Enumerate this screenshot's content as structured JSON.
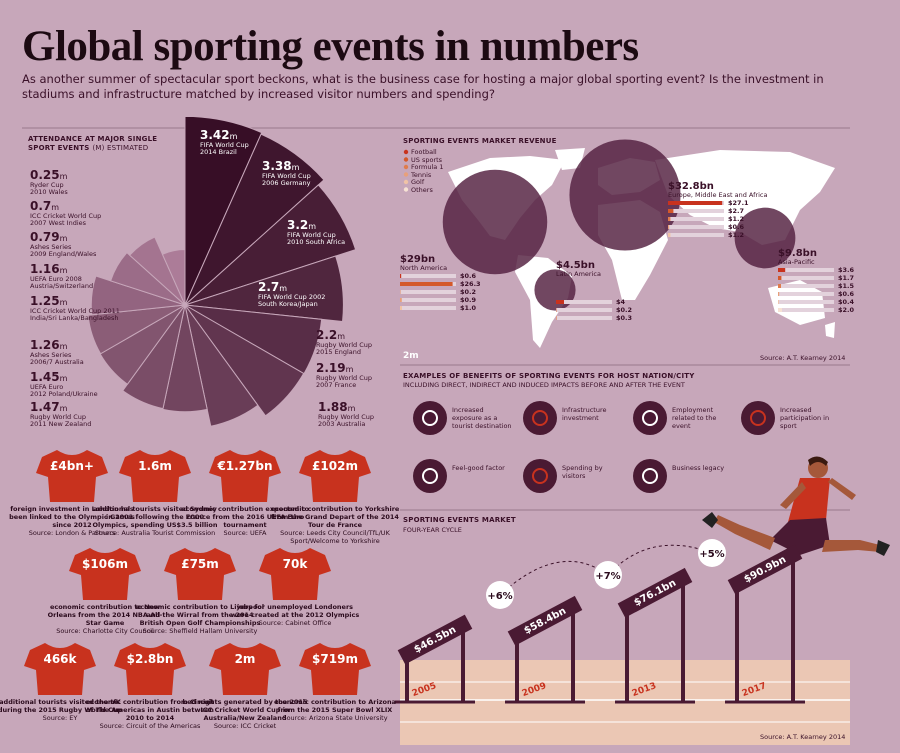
{
  "header": {
    "title": "Global sporting events in numbers",
    "subtitle": "As another summer of spectacular sport beckons, what is the business case for hosting a major global sporting event? Is the investment in stadiums and infrastructure matched by increased visitor numbers and spending?"
  },
  "attendance": {
    "title": "ATTENDANCE AT MAJOR SINGLE SPORT EVENTS",
    "note": "(M) ESTIMATED",
    "unit": "m",
    "events": [
      {
        "value": 3.42,
        "event": "FIFA World Cup",
        "host": "2014 Brazil"
      },
      {
        "value": 3.38,
        "event": "FIFA World Cup",
        "host": "2006 Germany"
      },
      {
        "value": 3.2,
        "event": "FIFA World Cup",
        "host": "2010 South Africa"
      },
      {
        "value": 2.7,
        "event": "FIFA World Cup 2002",
        "host": "South Korea/Japan"
      },
      {
        "value": 2.2,
        "event": "Rugby World Cup",
        "host": "2015 England"
      },
      {
        "value": 2.19,
        "event": "Rugby World Cup",
        "host": "2007 France"
      },
      {
        "value": 1.88,
        "event": "Rugby World Cup",
        "host": "2003 Australia"
      },
      {
        "value": 1.47,
        "event": "Rugby World Cup",
        "host": "2011 New Zealand"
      },
      {
        "value": 1.45,
        "event": "UEFA Euro",
        "host": "2012 Poland/Ukraine"
      },
      {
        "value": 1.26,
        "event": "Ashes Series",
        "host": "2006/7 Australia"
      },
      {
        "value": 1.25,
        "event": "ICC Cricket World Cup 2011",
        "host": "India/Sri Lanka/Bangladesh"
      },
      {
        "value": 1.16,
        "event": "UEFA Euro 2008",
        "host": "Austria/Switzerland"
      },
      {
        "value": 0.79,
        "event": "Ashes Series",
        "host": "2009 England/Wales"
      },
      {
        "value": 0.7,
        "event": "ICC Cricket World Cup",
        "host": "2007 West Indies"
      },
      {
        "value": 0.25,
        "event": "Ryder Cup",
        "host": "2010 Wales"
      }
    ]
  },
  "revenue": {
    "title": "SPORTING EVENTS MARKET REVENUE",
    "legend": [
      {
        "name": "Football",
        "color": "#c8321e"
      },
      {
        "name": "US sports",
        "color": "#d4582a"
      },
      {
        "name": "Formula 1",
        "color": "#e07c4c"
      },
      {
        "name": "Tennis",
        "color": "#e8a07a"
      },
      {
        "name": "Golf",
        "color": "#f0c3a6"
      },
      {
        "name": "Others",
        "color": "#f7e2d4"
      }
    ],
    "scale_label": "2m",
    "source": "Source: A.T. Kearney 2014",
    "regions": [
      {
        "name": "North America",
        "total": {
          "value": 29,
          "label": "$29bn"
        },
        "segments": [
          {
            "value": 0.6,
            "label": "$0.6"
          },
          {
            "value": 26.3,
            "label": "$26.3"
          },
          {
            "value": 0.2,
            "label": "$0.2"
          },
          {
            "value": 0.9,
            "label": "$0.9"
          },
          {
            "value": 1.0,
            "label": "$1.0"
          }
        ]
      },
      {
        "name": "Europe, Middle East and Africa",
        "total": {
          "value": 32.8,
          "label": "$32.8bn"
        },
        "segments": [
          {
            "value": 27.1,
            "label": "$27.1"
          },
          {
            "value": 2.7,
            "label": "$2.7"
          },
          {
            "value": 1.2,
            "label": "$1.2"
          },
          {
            "value": 0.6,
            "label": "$0.6"
          },
          {
            "value": 1.2,
            "label": "$1.2"
          }
        ]
      },
      {
        "name": "Latin America",
        "total": {
          "value": 4.5,
          "label": "$4.5bn"
        },
        "segments": [
          {
            "value": 4,
            "label": "$4"
          },
          {
            "value": 0.2,
            "label": "$0.2"
          },
          {
            "value": 0.3,
            "label": "$0.3"
          }
        ]
      },
      {
        "name": "Asia-Pacific",
        "total": {
          "value": 9.8,
          "label": "$9.8bn"
        },
        "segments": [
          {
            "value": 3.6,
            "label": "$3.6"
          },
          {
            "value": 1.7,
            "label": "$1.7"
          },
          {
            "value": 1.5,
            "label": "$1.5"
          },
          {
            "value": 0.6,
            "label": "$0.6"
          },
          {
            "value": 0.4,
            "label": "$0.4"
          },
          {
            "value": 2.0,
            "label": "$2.0"
          }
        ]
      }
    ]
  },
  "benefits": {
    "title": "EXAMPLES OF BENEFITS OF SPORTING EVENTS FOR HOST NATION/CITY",
    "subtitle": "INCLUDING DIRECT, INDIRECT AND INDUCED IMPACTS BEFORE AND AFTER THE EVENT",
    "items": [
      "Increased exposure as a tourist destination",
      "Infrastructure investment",
      "Employment related to the event",
      "Increased participation in sport",
      "Feel-good factor",
      "Spending by visitors",
      "Business legacy"
    ]
  },
  "impacts": [
    {
      "figure": "£4bn+",
      "text": "foreign investment in London has been linked to the Olympic Games since 2012",
      "source": "Source: London & Partners"
    },
    {
      "figure": "1.6m",
      "text": "additional tourists visited Sydney in 2001 following the 2000 Olympics, spending US$3.5 billion",
      "source": "Source: Australia Tourist Commission"
    },
    {
      "figure": "€1.27bn",
      "text": "economic contribution expected to France from the 2016 UEFA Euro tournament",
      "source": "Source: UEFA"
    },
    {
      "figure": "£102m",
      "text": "economic contribution to Yorkshire from the Grand Depart of the 2014 Tour de France",
      "source": "Source: Leeds City Council/TfL/UK Sport/Welcome to Yorkshire"
    },
    {
      "figure": "$106m",
      "text": "economic contribution to New Orleans from the 2014 NBA All-Star Game",
      "source": "Source: Charlotte City Council"
    },
    {
      "figure": "£75m",
      "text": "economic contribution to Liverpool and the Wirral from the 2014 British Open Golf Championships",
      "source": "Source: Sheffield Hallam University"
    },
    {
      "figure": "70k",
      "text": "jobs for unemployed Londoners were created at the 2012 Olympics",
      "source": "Source: Cabinet Office"
    },
    {
      "figure": "466k",
      "text": "additional tourists visited the UK during the 2015 Rugby World Cup",
      "source": "Source: EY"
    },
    {
      "figure": "$2.8bn",
      "text": "economic contribution from Circuit of The Americas in Austin between 2010 to 2014",
      "source": "Source: Circuit of the Americas"
    },
    {
      "figure": "2m",
      "text": "bed nights generated by the 2015 ICC Cricket World Cup in Australia/New Zealand",
      "source": "Source: ICC Cricket"
    },
    {
      "figure": "$719m",
      "text": "economic contribution to Arizona from the 2015 Super Bowl XLIX",
      "source": "Source: Arizona State University"
    }
  ],
  "market": {
    "title": "SPORTING EVENTS MARKET",
    "subtitle": "FOUR-YEAR CYCLE",
    "years": [
      {
        "year": "2005",
        "value": 46.5,
        "label": "$46.5bn"
      },
      {
        "year": "2009",
        "value": 58.4,
        "label": "$58.4bn"
      },
      {
        "year": "2013",
        "value": 76.1,
        "label": "$76.1bn"
      },
      {
        "year": "2017",
        "value": 90.9,
        "label": "$90.9bn"
      }
    ],
    "growth": [
      {
        "value": 6,
        "label": "+6%"
      },
      {
        "value": 7,
        "label": "+7%"
      },
      {
        "value": 5,
        "label": "+5%"
      }
    ],
    "source": "Source: A.T. Kearney 2014"
  }
}
